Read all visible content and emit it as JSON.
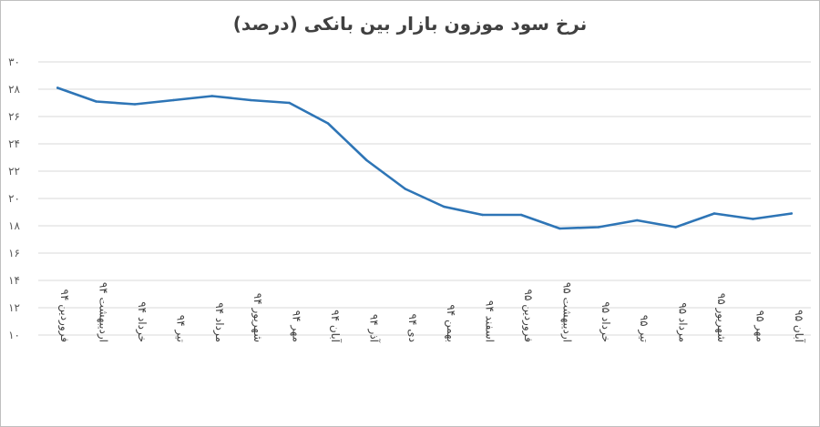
{
  "chart_data": {
    "type": "line",
    "title": "نرخ سود موزون بازار بین بانکی (درصد)",
    "xlabel": "",
    "ylabel": "",
    "categories": [
      "فروردین ۹۴",
      "اردیبهشت ۹۴",
      "خرداد ۹۴",
      "تیر ۹۴",
      "مرداد ۹۴",
      "شهریور ۹۴",
      "مهر ۹۴",
      "آبان ۹۴",
      "آذر ۹۴",
      "دی ۹۴",
      "بهمن ۹۴",
      "اسفند ۹۴",
      "فروردین ۹۵",
      "اردیبهشت ۹۵",
      "خرداد ۹۵",
      "تیر ۹۵",
      "مرداد ۹۵",
      "شهریور ۹۵",
      "مهر ۹۵",
      "آبان ۹۵"
    ],
    "series": [
      {
        "values": [
          28.1,
          27.1,
          26.9,
          27.2,
          27.5,
          27.2,
          27.0,
          25.5,
          22.8,
          20.7,
          19.4,
          18.8,
          18.8,
          17.8,
          17.9,
          18.4,
          17.9,
          18.9,
          18.5,
          18.9
        ],
        "color": "#2e75b6"
      }
    ],
    "ylim": [
      10,
      30
    ],
    "yticks": [
      "۱۰",
      "۱۲",
      "۱۴",
      "۱۶",
      "۱۸",
      "۲۰",
      "۲۲",
      "۲۴",
      "۲۶",
      "۲۸",
      "۳۰"
    ],
    "grid": true,
    "legend": "none"
  }
}
